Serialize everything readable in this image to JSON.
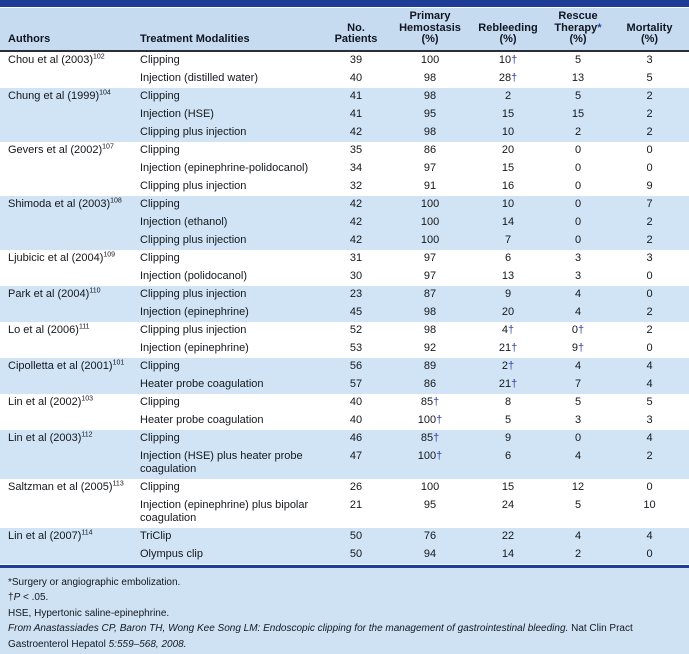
{
  "colors": {
    "top_bar": "#1e3d96",
    "rule": "#1e3d96",
    "header_bg": "#c6dbef",
    "stripe_bg": "#d1e4f5",
    "plain_bg": "#ffffff",
    "footer_bg": "#cfe2f3",
    "dagger_blue": "#2e3f9f",
    "text": "#14171c"
  },
  "table": {
    "columns": [
      {
        "key": "authors",
        "align": "left",
        "label_lines": [
          "Authors"
        ]
      },
      {
        "key": "treatment",
        "align": "left",
        "label_lines": [
          "Treatment Modalities"
        ]
      },
      {
        "key": "patients",
        "align": "center",
        "label_lines": [
          "No.",
          "Patients"
        ]
      },
      {
        "key": "hemostasis",
        "align": "center",
        "label_lines": [
          "Primary",
          "Hemostasis",
          "(%)"
        ]
      },
      {
        "key": "rebleeding",
        "align": "center",
        "label_lines": [
          "Rebleeding",
          "(%)"
        ]
      },
      {
        "key": "rescue",
        "align": "center",
        "label_lines": [
          "Rescue",
          "Therapy*",
          "(%)"
        ]
      },
      {
        "key": "mortality",
        "align": "center",
        "label_lines": [
          "Mortality",
          "(%)"
        ]
      }
    ],
    "rows": [
      {
        "author": "Chou et al (2003)",
        "ref": "102",
        "treatment": "Clipping",
        "patients": "39",
        "hemostasis": "100",
        "rebleeding": "10†",
        "rescue": "5",
        "mortality": "3",
        "shaded": false
      },
      {
        "author": "",
        "ref": "",
        "treatment": "Injection (distilled water)",
        "patients": "40",
        "hemostasis": "98",
        "rebleeding": "28†",
        "rescue": "13",
        "mortality": "5",
        "shaded": false
      },
      {
        "author": "Chung et al (1999)",
        "ref": "104",
        "treatment": "Clipping",
        "patients": "41",
        "hemostasis": "98",
        "rebleeding": "2",
        "rescue": "5",
        "mortality": "2",
        "shaded": true
      },
      {
        "author": "",
        "ref": "",
        "treatment": "Injection (HSE)",
        "patients": "41",
        "hemostasis": "95",
        "rebleeding": "15",
        "rescue": "15",
        "mortality": "2",
        "shaded": true
      },
      {
        "author": "",
        "ref": "",
        "treatment": "Clipping plus injection",
        "patients": "42",
        "hemostasis": "98",
        "rebleeding": "10",
        "rescue": "2",
        "mortality": "2",
        "shaded": true
      },
      {
        "author": "Gevers et al (2002)",
        "ref": "107",
        "treatment": "Clipping",
        "patients": "35",
        "hemostasis": "86",
        "rebleeding": "20",
        "rescue": "0",
        "mortality": "0",
        "shaded": false
      },
      {
        "author": "",
        "ref": "",
        "treatment": "Injection (epinephrine-polidocanol)",
        "patients": "34",
        "hemostasis": "97",
        "rebleeding": "15",
        "rescue": "0",
        "mortality": "0",
        "shaded": false
      },
      {
        "author": "",
        "ref": "",
        "treatment": "Clipping plus injection",
        "patients": "32",
        "hemostasis": "91",
        "rebleeding": "16",
        "rescue": "0",
        "mortality": "9",
        "shaded": false
      },
      {
        "author": "Shimoda et al (2003)",
        "ref": "108",
        "treatment": "Clipping",
        "patients": "42",
        "hemostasis": "100",
        "rebleeding": "10",
        "rescue": "0",
        "mortality": "7",
        "shaded": true
      },
      {
        "author": "",
        "ref": "",
        "treatment": "Injection (ethanol)",
        "patients": "42",
        "hemostasis": "100",
        "rebleeding": "14",
        "rescue": "0",
        "mortality": "2",
        "shaded": true
      },
      {
        "author": "",
        "ref": "",
        "treatment": "Clipping plus injection",
        "patients": "42",
        "hemostasis": "100",
        "rebleeding": "7",
        "rescue": "0",
        "mortality": "2",
        "shaded": true
      },
      {
        "author": "Ljubicic et al (2004)",
        "ref": "109",
        "treatment": "Clipping",
        "patients": "31",
        "hemostasis": "97",
        "rebleeding": "6",
        "rescue": "3",
        "mortality": "3",
        "shaded": false
      },
      {
        "author": "",
        "ref": "",
        "treatment": "Injection (polidocanol)",
        "patients": "30",
        "hemostasis": "97",
        "rebleeding": "13",
        "rescue": "3",
        "mortality": "0",
        "shaded": false
      },
      {
        "author": "Park et al (2004)",
        "ref": "110",
        "treatment": "Clipping plus injection",
        "patients": "23",
        "hemostasis": "87",
        "rebleeding": "9",
        "rescue": "4",
        "mortality": "0",
        "shaded": true
      },
      {
        "author": "",
        "ref": "",
        "treatment": "Injection (epinephrine)",
        "patients": "45",
        "hemostasis": "98",
        "rebleeding": "20",
        "rescue": "4",
        "mortality": "2",
        "shaded": true
      },
      {
        "author": "Lo et al (2006)",
        "ref": "111",
        "treatment": "Clipping plus injection",
        "patients": "52",
        "hemostasis": "98",
        "rebleeding": "4†",
        "rescue": "0†",
        "mortality": "2",
        "shaded": false
      },
      {
        "author": "",
        "ref": "",
        "treatment": "Injection (epinephrine)",
        "patients": "53",
        "hemostasis": "92",
        "rebleeding": "21†",
        "rescue": "9†",
        "mortality": "0",
        "shaded": false
      },
      {
        "author": "Cipolletta et al (2001)",
        "ref": "101",
        "treatment": "Clipping",
        "patients": "56",
        "hemostasis": "89",
        "rebleeding": "2†",
        "rescue": "4",
        "mortality": "4",
        "shaded": true
      },
      {
        "author": "",
        "ref": "",
        "treatment": "Heater probe coagulation",
        "patients": "57",
        "hemostasis": "86",
        "rebleeding": "21†",
        "rescue": "7",
        "mortality": "4",
        "shaded": true
      },
      {
        "author": "Lin et al (2002)",
        "ref": "103",
        "treatment": "Clipping",
        "patients": "40",
        "hemostasis": "85†",
        "rebleeding": "8",
        "rescue": "5",
        "mortality": "5",
        "shaded": false
      },
      {
        "author": "",
        "ref": "",
        "treatment": "Heater probe coagulation",
        "patients": "40",
        "hemostasis": "100†",
        "rebleeding": "5",
        "rescue": "3",
        "mortality": "3",
        "shaded": false
      },
      {
        "author": "Lin et al (2003)",
        "ref": "112",
        "treatment": "Clipping",
        "patients": "46",
        "hemostasis": "85†",
        "rebleeding": "9",
        "rescue": "0",
        "mortality": "4",
        "shaded": true
      },
      {
        "author": "",
        "ref": "",
        "treatment": "Injection (HSE) plus heater probe coagulation",
        "patients": "47",
        "hemostasis": "100†",
        "rebleeding": "6",
        "rescue": "4",
        "mortality": "2",
        "shaded": true
      },
      {
        "author": "Saltzman et al (2005)",
        "ref": "113",
        "treatment": "Clipping",
        "patients": "26",
        "hemostasis": "100",
        "rebleeding": "15",
        "rescue": "12",
        "mortality": "0",
        "shaded": false
      },
      {
        "author": "",
        "ref": "",
        "treatment": "Injection (epinephrine) plus bipolar coagulation",
        "patients": "21",
        "hemostasis": "95",
        "rebleeding": "24",
        "rescue": "5",
        "mortality": "10",
        "shaded": false
      },
      {
        "author": "Lin et al (2007)",
        "ref": "114",
        "treatment": "TriClip",
        "patients": "50",
        "hemostasis": "76",
        "rebleeding": "22",
        "rescue": "4",
        "mortality": "4",
        "shaded": true
      },
      {
        "author": "",
        "ref": "",
        "treatment": "Olympus clip",
        "patients": "50",
        "hemostasis": "94",
        "rebleeding": "14",
        "rescue": "2",
        "mortality": "0",
        "shaded": true
      }
    ]
  },
  "footnotes": {
    "lines": [
      {
        "segments": [
          {
            "text": "*Surgery or angiographic embolization.",
            "italic": false
          }
        ]
      },
      {
        "segments": [
          {
            "text": "†",
            "italic": false
          },
          {
            "text": "P",
            "italic": true
          },
          {
            "text": " < .05.",
            "italic": false
          }
        ]
      },
      {
        "segments": [
          {
            "text": "HSE, Hypertonic saline-epinephrine.",
            "italic": false
          }
        ]
      },
      {
        "segments": [
          {
            "text": "From Anastassiades CP, Baron TH, Wong Kee Song LM: Endoscopic clipping for the management of gastrointestinal bleeding.",
            "italic": true
          },
          {
            "text": " Nat Clin Pract Gastroenterol Hepatol ",
            "italic": false
          },
          {
            "text": "5:559–568, 2008.",
            "italic": true
          }
        ]
      }
    ]
  }
}
